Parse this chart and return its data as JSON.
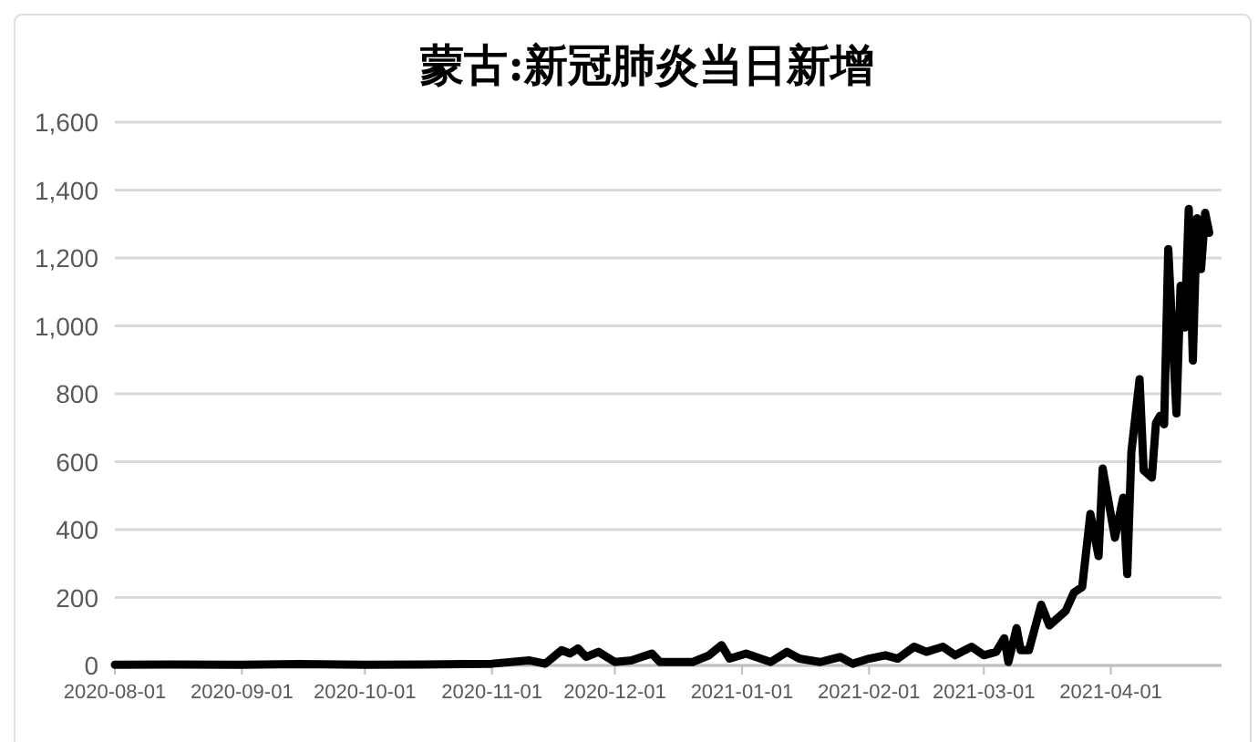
{
  "chart_data": {
    "type": "line",
    "title": "蒙古:新冠肺炎当日新增",
    "xlim": [
      "2020-08-01",
      "2021-04-28"
    ],
    "xticks": [
      {
        "value": "2020-08-01",
        "label": "2020-08-01"
      },
      {
        "value": "2020-09-01",
        "label": "2020-09-01"
      },
      {
        "value": "2020-10-01",
        "label": "2020-10-01"
      },
      {
        "value": "2020-11-01",
        "label": "2020-11-01"
      },
      {
        "value": "2020-12-01",
        "label": "2020-12-01"
      },
      {
        "value": "2021-01-01",
        "label": "2021-01-01"
      },
      {
        "value": "2021-02-01",
        "label": "2021-02-01"
      },
      {
        "value": "2021-03-01",
        "label": "2021-03-01"
      },
      {
        "value": "2021-04-01",
        "label": "2021-04-01"
      }
    ],
    "ylim": [
      0,
      1600
    ],
    "yticks": [
      0,
      {
        "value": 200,
        "label": "200"
      },
      {
        "value": 400,
        "label": "400"
      },
      {
        "value": 600,
        "label": "600"
      },
      {
        "value": 800,
        "label": "800"
      },
      {
        "value": 1000,
        "label": "1,000"
      },
      {
        "value": 1200,
        "label": "1,200"
      },
      {
        "value": 1400,
        "label": "1,400"
      },
      {
        "value": 1600,
        "label": "1,600"
      }
    ],
    "grid": "y",
    "marker": "none",
    "line_style": "solid",
    "series": [
      {
        "color": "#000000",
        "x": [
          "2020-08-01",
          "2020-08-15",
          "2020-09-01",
          "2020-09-15",
          "2020-10-01",
          "2020-10-15",
          "2020-11-01",
          "2020-11-10",
          "2020-11-14",
          "2020-11-18",
          "2020-11-20",
          "2020-11-22",
          "2020-11-24",
          "2020-11-27",
          "2020-12-01",
          "2020-12-05",
          "2020-12-10",
          "2020-12-12",
          "2020-12-20",
          "2020-12-24",
          "2020-12-27",
          "2020-12-29",
          "2021-01-02",
          "2021-01-08",
          "2021-01-12",
          "2021-01-15",
          "2021-01-20",
          "2021-01-25",
          "2021-01-28",
          "2021-02-01",
          "2021-02-05",
          "2021-02-08",
          "2021-02-12",
          "2021-02-15",
          "2021-02-19",
          "2021-02-22",
          "2021-02-26",
          "2021-03-01",
          "2021-03-04",
          "2021-03-06",
          "2021-03-07",
          "2021-03-09",
          "2021-03-10",
          "2021-03-12",
          "2021-03-15",
          "2021-03-17",
          "2021-03-21",
          "2021-03-23",
          "2021-03-25",
          "2021-03-27",
          "2021-03-29",
          "2021-03-30",
          "2021-04-02",
          "2021-04-04",
          "2021-04-05",
          "2021-04-06",
          "2021-04-08",
          "2021-04-09",
          "2021-04-11",
          "2021-04-12",
          "2021-04-13",
          "2021-04-14",
          "2021-04-15",
          "2021-04-17",
          "2021-04-18",
          "2021-04-19",
          "2021-04-20",
          "2021-04-21",
          "2021-04-22",
          "2021-04-23",
          "2021-04-24",
          "2021-04-25"
        ],
        "values": [
          2,
          3,
          2,
          4,
          2,
          3,
          5,
          15,
          5,
          45,
          35,
          50,
          25,
          40,
          10,
          15,
          35,
          10,
          10,
          30,
          60,
          20,
          35,
          10,
          40,
          20,
          10,
          25,
          5,
          20,
          30,
          20,
          55,
          40,
          55,
          30,
          55,
          30,
          40,
          80,
          10,
          110,
          45,
          45,
          179,
          118,
          161,
          215,
          231,
          446,
          322,
          580,
          376,
          494,
          269,
          628,
          843,
          575,
          553,
          714,
          735,
          710,
          1226,
          742,
          1118,
          995,
          1344,
          898,
          1317,
          1167,
          1333,
          1274
        ]
      }
    ]
  }
}
